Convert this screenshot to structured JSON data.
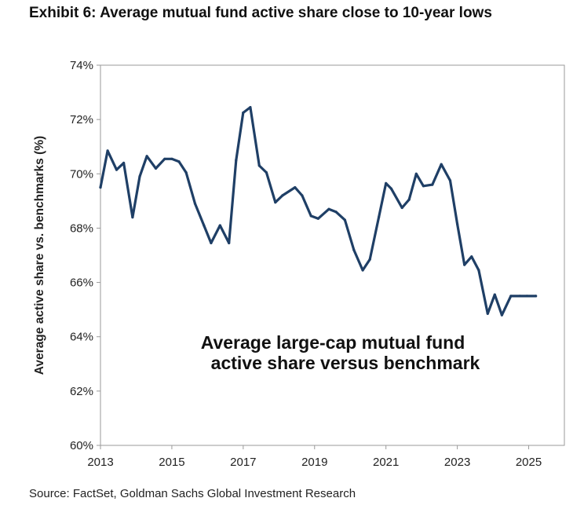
{
  "header": {
    "title": "Exhibit 6: Average mutual fund active share close to 10-year lows"
  },
  "footer": {
    "source": "Source: FactSet, Goldman Sachs Global Investment Research"
  },
  "colors": {
    "line": "#1f3f66",
    "frame": "#9a9a9a",
    "text": "#222222"
  },
  "chart_data": {
    "type": "line",
    "title": "Exhibit 6: Average mutual fund active share close to 10-year lows",
    "xlabel": "",
    "ylabel": "Average active share vs. benchmarks (%)",
    "xlim": [
      2013,
      2026
    ],
    "ylim": [
      60,
      74
    ],
    "x_ticks": [
      2013,
      2015,
      2017,
      2019,
      2021,
      2023,
      2025
    ],
    "y_ticks": [
      60,
      62,
      64,
      66,
      68,
      70,
      72,
      74
    ],
    "y_tick_labels": [
      "60%",
      "62%",
      "64%",
      "66%",
      "68%",
      "70%",
      "72%",
      "74%"
    ],
    "grid": false,
    "annotation": [
      "Average large-cap mutual fund",
      "active share versus benchmark"
    ],
    "series": [
      {
        "name": "Average large-cap mutual fund active share versus benchmark",
        "x": [
          2013.0,
          2013.2,
          2013.45,
          2013.65,
          2013.9,
          2014.1,
          2014.3,
          2014.55,
          2014.8,
          2015.0,
          2015.2,
          2015.4,
          2015.65,
          2015.9,
          2016.1,
          2016.35,
          2016.6,
          2016.8,
          2017.0,
          2017.2,
          2017.45,
          2017.65,
          2017.9,
          2018.1,
          2018.45,
          2018.65,
          2018.9,
          2019.1,
          2019.4,
          2019.6,
          2019.85,
          2020.1,
          2020.35,
          2020.55,
          2020.8,
          2021.0,
          2021.15,
          2021.45,
          2021.65,
          2021.85,
          2022.05,
          2022.3,
          2022.55,
          2022.8,
          2023.0,
          2023.2,
          2023.4,
          2023.6,
          2023.85,
          2024.05,
          2024.25,
          2024.5,
          2024.75,
          2024.95,
          2025.2
        ],
        "values": [
          69.5,
          70.85,
          70.15,
          70.4,
          68.4,
          69.9,
          70.65,
          70.2,
          70.55,
          70.55,
          70.45,
          70.05,
          68.9,
          68.1,
          67.45,
          68.1,
          67.45,
          70.5,
          72.25,
          72.45,
          70.3,
          70.05,
          68.95,
          69.2,
          69.5,
          69.2,
          68.45,
          68.35,
          68.7,
          68.6,
          68.3,
          67.2,
          66.45,
          66.85,
          68.4,
          69.65,
          69.45,
          68.75,
          69.05,
          70.0,
          69.55,
          69.6,
          70.35,
          69.75,
          68.15,
          66.65,
          66.95,
          66.45,
          64.85,
          65.55,
          64.8,
          65.5,
          65.5,
          65.5,
          65.5
        ]
      }
    ]
  }
}
